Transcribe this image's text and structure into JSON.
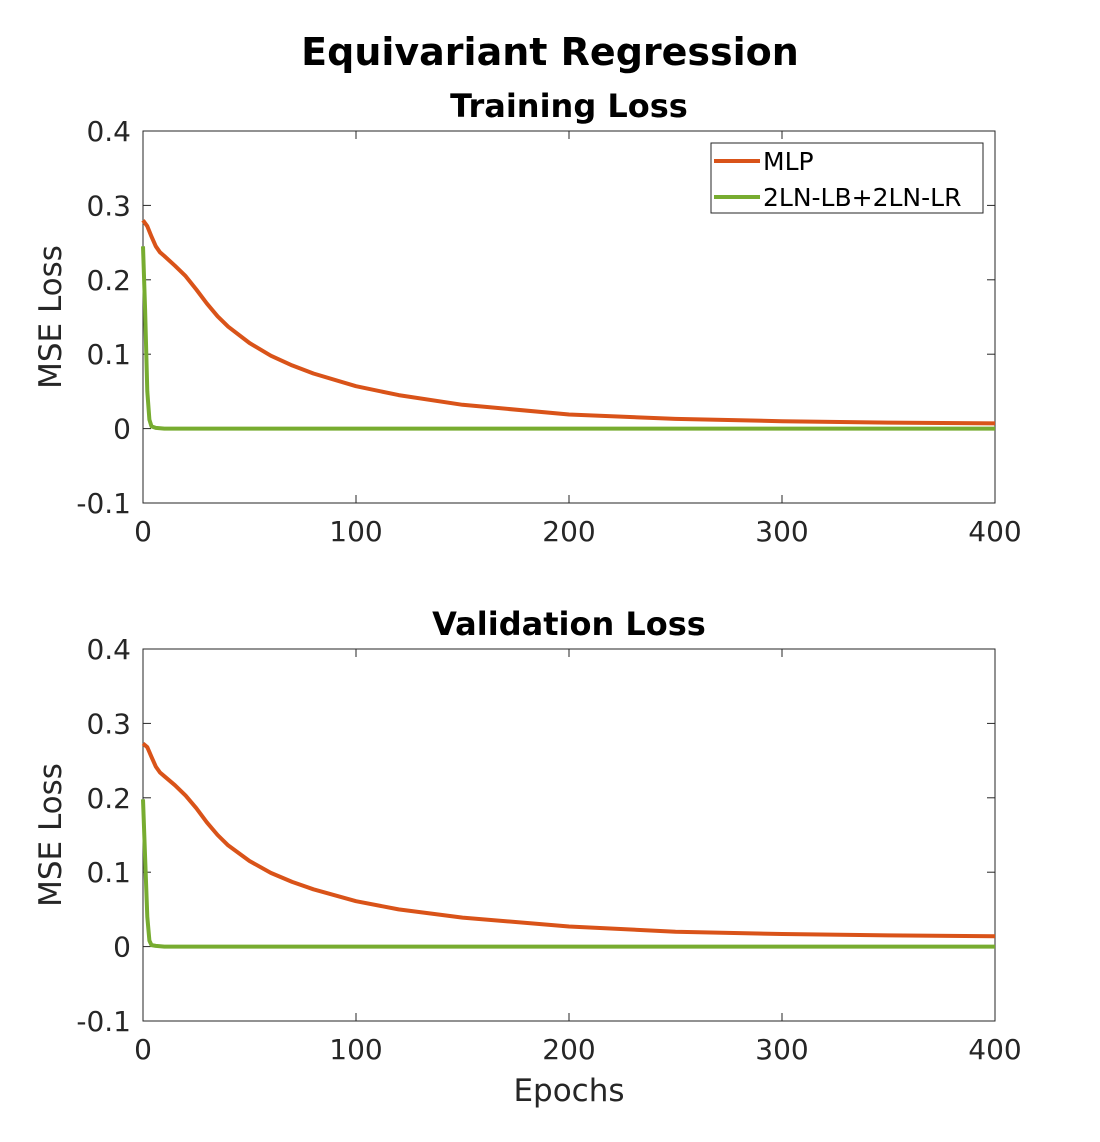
{
  "figure_title": "Equivariant Regression",
  "colors": {
    "mlp": "#D95319",
    "lnlb": "#77AC30",
    "axis": "#262626"
  },
  "chart_data": [
    {
      "type": "line",
      "title": "Training Loss",
      "xlabel": "",
      "ylabel": "MSE Loss",
      "xlim": [
        0,
        400
      ],
      "ylim": [
        -0.1,
        0.4
      ],
      "xticks": [
        0,
        100,
        200,
        300,
        400
      ],
      "xtick_labels": [
        "0",
        "100",
        "200",
        "300",
        "400"
      ],
      "yticks": [
        -0.1,
        0,
        0.1,
        0.2,
        0.3,
        0.4
      ],
      "ytick_labels": [
        "-0.1",
        "0",
        "0.1",
        "0.2",
        "0.3",
        "0.4"
      ],
      "grid": false,
      "legend": "top-right",
      "series": [
        {
          "name": "MLP",
          "x": [
            0,
            2,
            4,
            6,
            8,
            10,
            15,
            20,
            25,
            30,
            35,
            40,
            50,
            60,
            70,
            80,
            100,
            120,
            150,
            200,
            250,
            300,
            350,
            400
          ],
          "y": [
            0.28,
            0.272,
            0.258,
            0.245,
            0.237,
            0.232,
            0.219,
            0.205,
            0.187,
            0.168,
            0.151,
            0.137,
            0.115,
            0.098,
            0.085,
            0.074,
            0.057,
            0.045,
            0.032,
            0.019,
            0.013,
            0.01,
            0.008,
            0.007
          ]
        },
        {
          "name": "2LN-LB+2LN-LR",
          "x": [
            0,
            1,
            2,
            3,
            4,
            6,
            10,
            20,
            400
          ],
          "y": [
            0.245,
            0.16,
            0.05,
            0.012,
            0.003,
            0.001,
            0.0,
            0.0,
            0.0
          ]
        }
      ]
    },
    {
      "type": "line",
      "title": "Validation Loss",
      "xlabel": "Epochs",
      "ylabel": "MSE Loss",
      "xlim": [
        0,
        400
      ],
      "ylim": [
        -0.1,
        0.4
      ],
      "xticks": [
        0,
        100,
        200,
        300,
        400
      ],
      "xtick_labels": [
        "0",
        "100",
        "200",
        "300",
        "400"
      ],
      "yticks": [
        -0.1,
        0,
        0.1,
        0.2,
        0.3,
        0.4
      ],
      "ytick_labels": [
        "-0.1",
        "0",
        "0.1",
        "0.2",
        "0.3",
        "0.4"
      ],
      "grid": false,
      "legend": "",
      "series": [
        {
          "name": "MLP",
          "x": [
            0,
            2,
            4,
            6,
            8,
            10,
            15,
            20,
            25,
            30,
            35,
            40,
            50,
            60,
            70,
            80,
            100,
            120,
            150,
            200,
            250,
            300,
            350,
            400
          ],
          "y": [
            0.273,
            0.268,
            0.255,
            0.242,
            0.234,
            0.229,
            0.217,
            0.203,
            0.186,
            0.167,
            0.15,
            0.136,
            0.115,
            0.099,
            0.087,
            0.077,
            0.061,
            0.05,
            0.039,
            0.027,
            0.02,
            0.017,
            0.015,
            0.014
          ]
        },
        {
          "name": "2LN-LB+2LN-LR",
          "x": [
            0,
            1,
            2,
            3,
            4,
            6,
            10,
            20,
            400
          ],
          "y": [
            0.198,
            0.12,
            0.04,
            0.008,
            0.002,
            0.001,
            0.0,
            0.0,
            0.0
          ]
        }
      ]
    }
  ]
}
